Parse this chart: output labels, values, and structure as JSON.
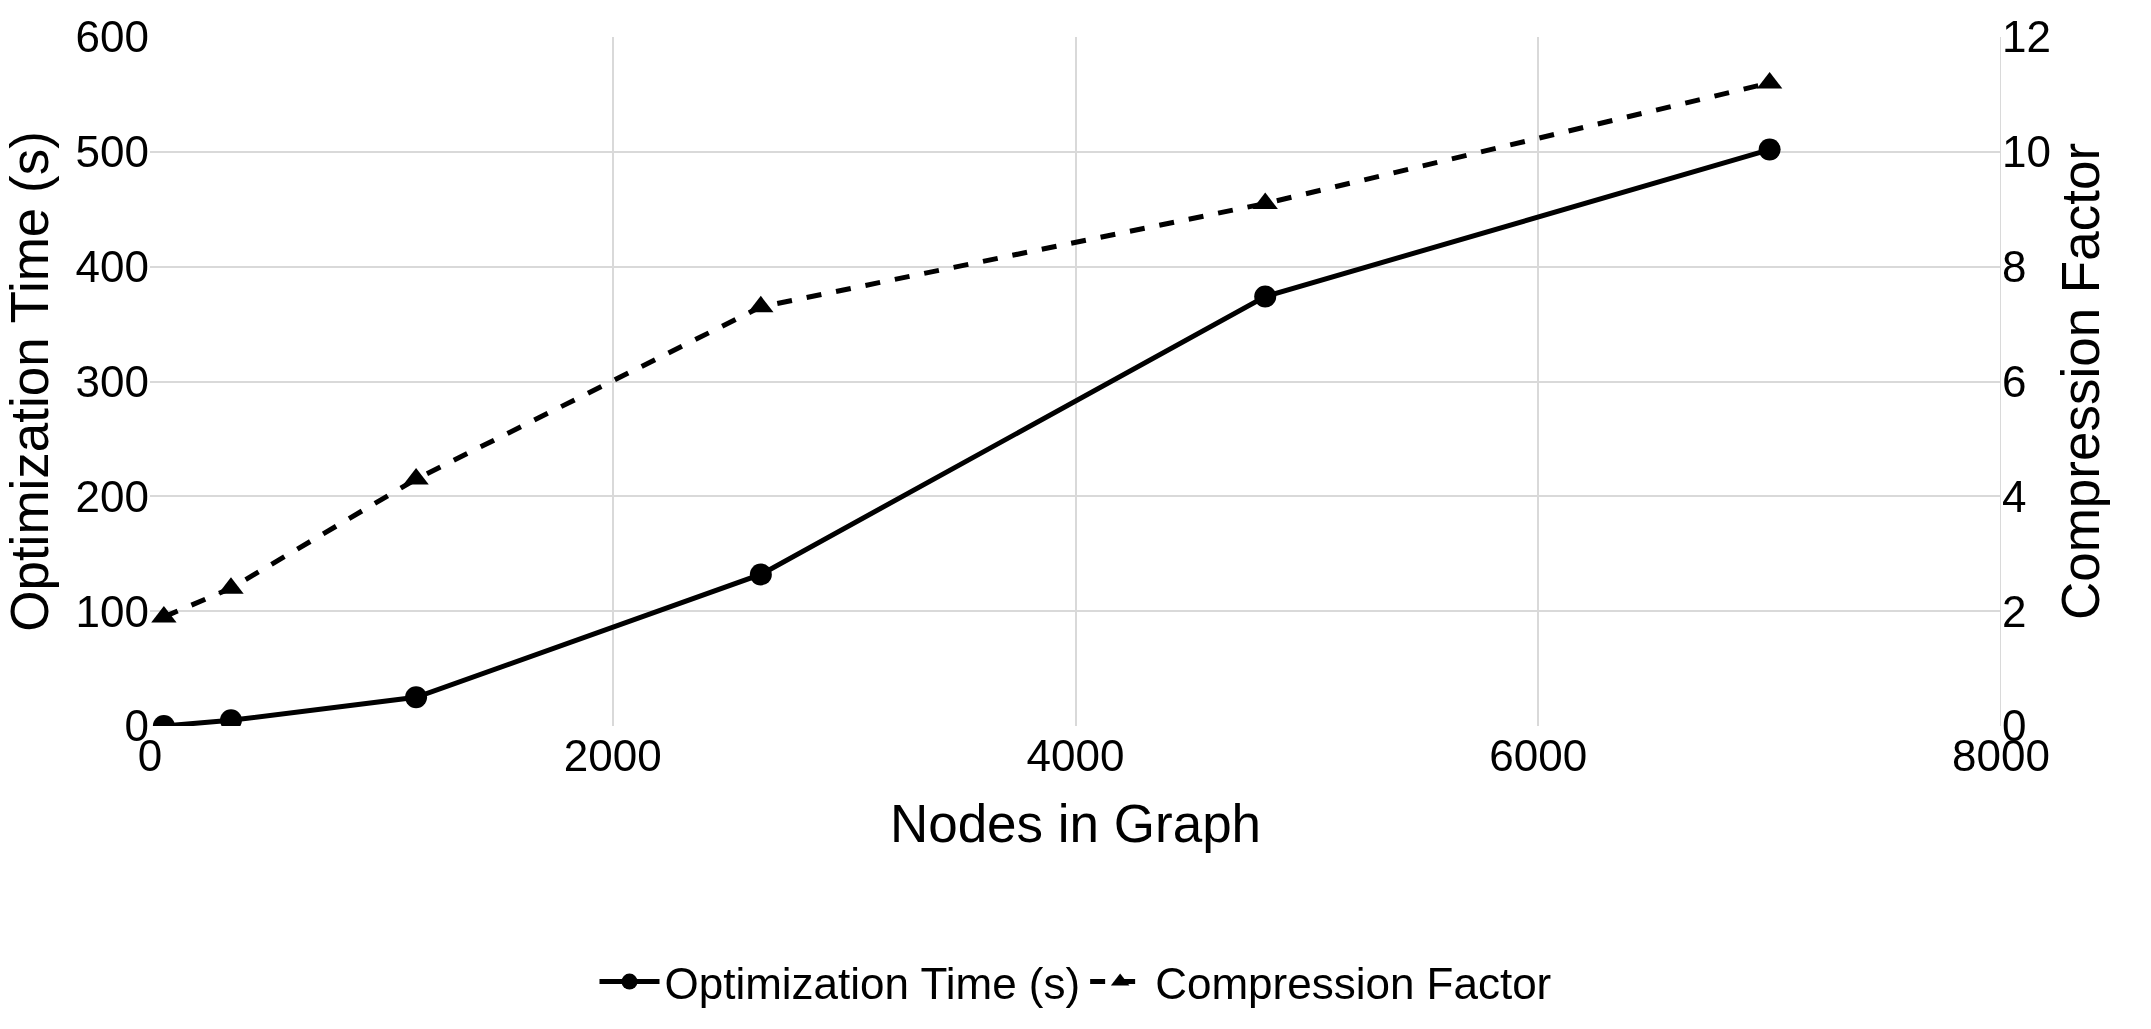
{
  "chart_data": {
    "type": "line",
    "xlabel": "Nodes in Graph",
    "ylabel": "Optimization Time (s)",
    "y2label": "Compression Factor",
    "x": [
      60,
      350,
      1150,
      2640,
      4820,
      7000
    ],
    "series": [
      {
        "name": "Optimization Time (s)",
        "color": "#000000",
        "values": [
          0,
          5,
          25,
          132,
          374,
          502
        ],
        "marker": "circle",
        "line_style": "solid"
      },
      {
        "name": "Compression Factor",
        "color": "#000000",
        "values": [
          1.9,
          2.4,
          4.3,
          7.3,
          9.1,
          11.2
        ],
        "marker": "triangle",
        "line_style": "dashed",
        "axis": "y2"
      }
    ],
    "xlim": [
      0,
      8000
    ],
    "xticks": [
      0,
      2000,
      4000,
      6000,
      8000
    ],
    "ylim": [
      0,
      600
    ],
    "yticks": [
      0,
      100,
      200,
      300,
      400,
      500,
      600
    ],
    "y2lim": [
      0,
      12
    ],
    "y2ticks": [
      0,
      2,
      4,
      6,
      8,
      10,
      12
    ],
    "grid": true,
    "legend": "bottom"
  }
}
